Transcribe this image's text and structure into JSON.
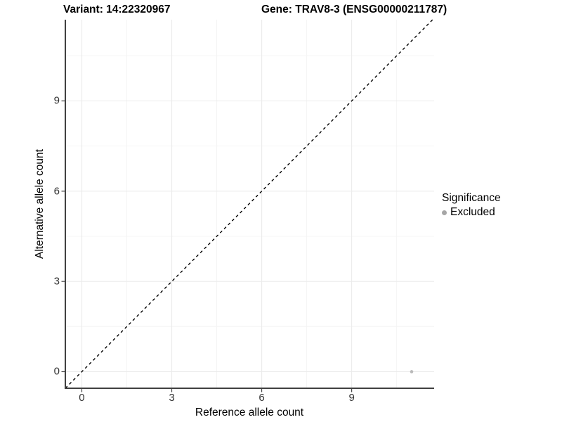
{
  "header": {
    "variant_title": "Variant: 14:22320967",
    "gene_title": "Gene: TRAV8-3 (ENSG00000211787)"
  },
  "chart_data": {
    "type": "scatter",
    "title": "Variant: 14:22320967 — Gene: TRAV8-3 (ENSG00000211787)",
    "xlabel": "Reference allele count",
    "ylabel": "Alternative allele count",
    "xlim": [
      -0.55,
      11.75
    ],
    "ylim": [
      -0.55,
      11.7
    ],
    "x_major_ticks": [
      0,
      3,
      6,
      9
    ],
    "y_major_ticks": [
      0,
      3,
      6,
      9
    ],
    "x_minor_ticks": [
      1.5,
      4.5,
      7.5,
      10.5
    ],
    "y_minor_ticks": [
      1.5,
      4.5,
      7.5,
      10.5
    ],
    "grid": "major-and-minor",
    "legend_position": "right",
    "reference_line": {
      "slope": 1,
      "intercept": 0,
      "style": "dashed",
      "color": "#000000"
    },
    "series": [
      {
        "name": "Excluded",
        "color": "#b9b9b9",
        "marker": "circle",
        "points": [
          {
            "x": 11,
            "y": 0
          }
        ]
      }
    ]
  },
  "legend": {
    "title": "Significance",
    "items": [
      {
        "label": "Excluded",
        "color": "#a6a6a6"
      }
    ]
  },
  "colors": {
    "background": "#ffffff",
    "axis_line": "#404040",
    "tick_mark": "#404040",
    "tick_label": "#333333",
    "grid_major": "#ebebeb",
    "grid_minor": "#f4f4f4",
    "title_text": "#000000"
  }
}
